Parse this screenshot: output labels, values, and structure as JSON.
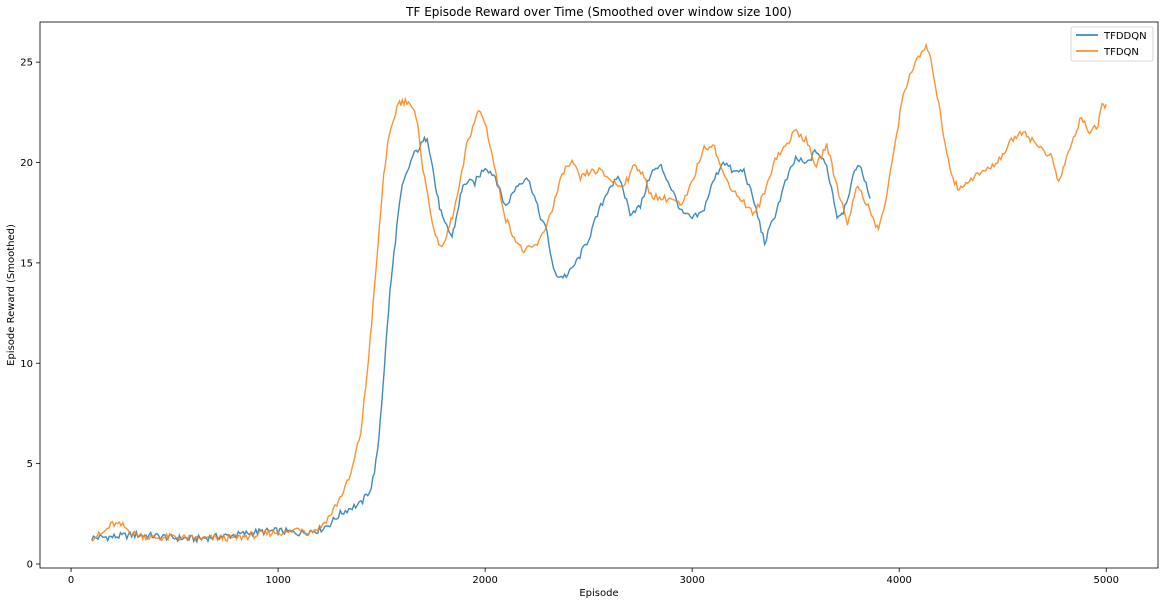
{
  "chart_data": {
    "type": "line",
    "title": "TF Episode Reward over Time (Smoothed over window size 100)",
    "xlabel": "Episode",
    "ylabel": "Episode Reward (Smoothed)",
    "xlim": [
      -150,
      5250
    ],
    "ylim": [
      -0.2,
      27
    ],
    "xticks": [
      0,
      1000,
      2000,
      3000,
      4000,
      5000
    ],
    "yticks": [
      0,
      5,
      10,
      15,
      20,
      25
    ],
    "grid": false,
    "legend_position": "top-right",
    "series": [
      {
        "name": "TFDDQN",
        "color": "#1f77b4",
        "points": [
          [
            100,
            1.3
          ],
          [
            200,
            1.35
          ],
          [
            300,
            1.45
          ],
          [
            400,
            1.4
          ],
          [
            500,
            1.3
          ],
          [
            600,
            1.25
          ],
          [
            700,
            1.35
          ],
          [
            800,
            1.45
          ],
          [
            900,
            1.6
          ],
          [
            1000,
            1.65
          ],
          [
            1100,
            1.55
          ],
          [
            1200,
            1.7
          ],
          [
            1250,
            2.0
          ],
          [
            1300,
            2.5
          ],
          [
            1350,
            2.8
          ],
          [
            1400,
            3.0
          ],
          [
            1450,
            3.8
          ],
          [
            1480,
            5.5
          ],
          [
            1500,
            8.0
          ],
          [
            1520,
            10.8
          ],
          [
            1540,
            13.5
          ],
          [
            1560,
            15.5
          ],
          [
            1580,
            17.4
          ],
          [
            1600,
            18.8
          ],
          [
            1650,
            20.3
          ],
          [
            1700,
            21.0
          ],
          [
            1720,
            21.3
          ],
          [
            1740,
            20.2
          ],
          [
            1760,
            18.8
          ],
          [
            1780,
            17.8
          ],
          [
            1800,
            17.0
          ],
          [
            1820,
            16.7
          ],
          [
            1840,
            16.3
          ],
          [
            1860,
            17.2
          ],
          [
            1880,
            18.3
          ],
          [
            1900,
            19.0
          ],
          [
            1950,
            19.0
          ],
          [
            2000,
            19.8
          ],
          [
            2050,
            19.3
          ],
          [
            2080,
            18.3
          ],
          [
            2100,
            17.8
          ],
          [
            2150,
            18.8
          ],
          [
            2200,
            19.3
          ],
          [
            2230,
            18.6
          ],
          [
            2260,
            17.5
          ],
          [
            2300,
            16.5
          ],
          [
            2330,
            14.6
          ],
          [
            2360,
            14.3
          ],
          [
            2400,
            14.4
          ],
          [
            2450,
            15.2
          ],
          [
            2500,
            16.2
          ],
          [
            2550,
            17.6
          ],
          [
            2600,
            18.8
          ],
          [
            2650,
            19.2
          ],
          [
            2700,
            17.5
          ],
          [
            2750,
            17.8
          ],
          [
            2800,
            19.5
          ],
          [
            2850,
            19.8
          ],
          [
            2900,
            18.7
          ],
          [
            2950,
            17.5
          ],
          [
            3000,
            17.2
          ],
          [
            3050,
            17.5
          ],
          [
            3100,
            19.0
          ],
          [
            3150,
            20.1
          ],
          [
            3200,
            19.5
          ],
          [
            3250,
            19.6
          ],
          [
            3300,
            18.0
          ],
          [
            3350,
            16.0
          ],
          [
            3400,
            17.4
          ],
          [
            3450,
            19.0
          ],
          [
            3500,
            20.2
          ],
          [
            3550,
            19.9
          ],
          [
            3600,
            20.6
          ],
          [
            3650,
            19.8
          ],
          [
            3680,
            18.4
          ],
          [
            3700,
            17.3
          ],
          [
            3730,
            17.6
          ],
          [
            3760,
            18.6
          ],
          [
            3800,
            20.0
          ],
          [
            3840,
            19.0
          ],
          [
            3860,
            18.2
          ]
        ]
      },
      {
        "name": "TFDQN",
        "color": "#ff7f0e",
        "points": [
          [
            100,
            1.3
          ],
          [
            150,
            1.5
          ],
          [
            200,
            2.0
          ],
          [
            250,
            1.9
          ],
          [
            300,
            1.5
          ],
          [
            400,
            1.3
          ],
          [
            500,
            1.35
          ],
          [
            600,
            1.25
          ],
          [
            700,
            1.3
          ],
          [
            800,
            1.3
          ],
          [
            900,
            1.45
          ],
          [
            1000,
            1.6
          ],
          [
            1050,
            1.55
          ],
          [
            1100,
            1.8
          ],
          [
            1150,
            1.6
          ],
          [
            1200,
            1.8
          ],
          [
            1250,
            2.4
          ],
          [
            1300,
            3.3
          ],
          [
            1350,
            4.4
          ],
          [
            1400,
            6.6
          ],
          [
            1430,
            9.5
          ],
          [
            1460,
            13.0
          ],
          [
            1490,
            16.8
          ],
          [
            1510,
            19.4
          ],
          [
            1530,
            20.9
          ],
          [
            1560,
            22.2
          ],
          [
            1580,
            23.0
          ],
          [
            1600,
            23.0
          ],
          [
            1630,
            23.1
          ],
          [
            1660,
            22.4
          ],
          [
            1680,
            21.5
          ],
          [
            1700,
            19.6
          ],
          [
            1730,
            18.0
          ],
          [
            1760,
            16.2
          ],
          [
            1800,
            15.8
          ],
          [
            1820,
            16.6
          ],
          [
            1850,
            17.6
          ],
          [
            1880,
            19.0
          ],
          [
            1910,
            20.8
          ],
          [
            1940,
            21.8
          ],
          [
            1970,
            22.6
          ],
          [
            2000,
            22.0
          ],
          [
            2030,
            20.6
          ],
          [
            2060,
            19.0
          ],
          [
            2100,
            17.2
          ],
          [
            2140,
            16.3
          ],
          [
            2180,
            15.6
          ],
          [
            2220,
            15.7
          ],
          [
            2260,
            16.0
          ],
          [
            2300,
            17.0
          ],
          [
            2330,
            17.9
          ],
          [
            2350,
            18.6
          ],
          [
            2380,
            19.6
          ],
          [
            2420,
            20.0
          ],
          [
            2460,
            19.2
          ],
          [
            2500,
            19.5
          ],
          [
            2550,
            19.6
          ],
          [
            2600,
            19.2
          ],
          [
            2650,
            18.8
          ],
          [
            2700,
            19.3
          ],
          [
            2720,
            20.0
          ],
          [
            2760,
            19.4
          ],
          [
            2800,
            18.4
          ],
          [
            2850,
            18.2
          ],
          [
            2900,
            18.2
          ],
          [
            2950,
            17.8
          ],
          [
            3000,
            19.0
          ],
          [
            3050,
            20.6
          ],
          [
            3100,
            21.0
          ],
          [
            3150,
            19.4
          ],
          [
            3200,
            18.6
          ],
          [
            3250,
            18.0
          ],
          [
            3300,
            17.4
          ],
          [
            3350,
            18.5
          ],
          [
            3400,
            20.2
          ],
          [
            3450,
            20.8
          ],
          [
            3500,
            21.6
          ],
          [
            3550,
            21.1
          ],
          [
            3600,
            19.8
          ],
          [
            3650,
            20.9
          ],
          [
            3700,
            18.8
          ],
          [
            3750,
            17.0
          ],
          [
            3800,
            18.9
          ],
          [
            3850,
            17.8
          ],
          [
            3880,
            17.0
          ],
          [
            3900,
            16.7
          ],
          [
            3940,
            18.3
          ],
          [
            3980,
            21.0
          ],
          [
            4020,
            23.4
          ],
          [
            4060,
            24.6
          ],
          [
            4100,
            25.3
          ],
          [
            4130,
            25.8
          ],
          [
            4160,
            24.8
          ],
          [
            4200,
            22.3
          ],
          [
            4230,
            20.5
          ],
          [
            4260,
            19.2
          ],
          [
            4290,
            18.6
          ],
          [
            4330,
            19.1
          ],
          [
            4380,
            19.4
          ],
          [
            4450,
            19.8
          ],
          [
            4500,
            20.4
          ],
          [
            4550,
            21.2
          ],
          [
            4600,
            21.6
          ],
          [
            4650,
            21.0
          ],
          [
            4700,
            20.6
          ],
          [
            4740,
            20.2
          ],
          [
            4770,
            18.9
          ],
          [
            4800,
            20.0
          ],
          [
            4850,
            21.4
          ],
          [
            4880,
            22.3
          ],
          [
            4920,
            21.5
          ],
          [
            4960,
            21.8
          ],
          [
            4980,
            22.8
          ],
          [
            5000,
            22.9
          ]
        ]
      }
    ]
  }
}
